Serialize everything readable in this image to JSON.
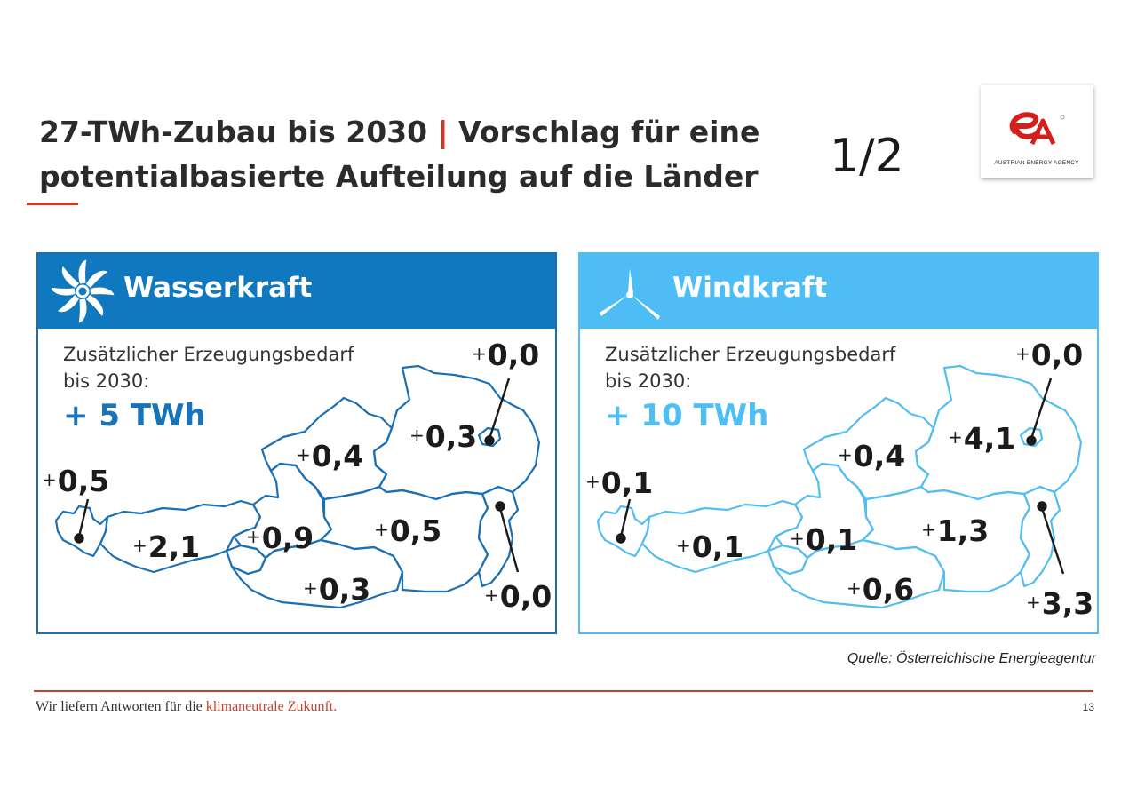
{
  "title": {
    "part1": "27-TWh-Zubau bis 2030 ",
    "separator": "|",
    "part2": " Vorschlag für eine potentialbasierte Aufteilung auf die Länder"
  },
  "page_fraction": "1/2",
  "logo": {
    "text": "AUSTRIAN ENERGY AGENCY",
    "monogram": "eA"
  },
  "panels": [
    {
      "id": "wasserkraft",
      "title": "Wasserkraft",
      "icon": "water-turbine-icon",
      "color": "#1078bf",
      "description_line1": "Zusätzlicher Erzeugungsbedarf",
      "description_line2": "bis 2030:",
      "total": "+ 5 TWh",
      "regions": [
        {
          "plus": "+",
          "value": "0,5"
        },
        {
          "plus": "+",
          "value": "2,1"
        },
        {
          "plus": "+",
          "value": "0,9"
        },
        {
          "plus": "+",
          "value": "0,4"
        },
        {
          "plus": "+",
          "value": "0,3"
        },
        {
          "plus": "+",
          "value": "0,0"
        },
        {
          "plus": "+",
          "value": "0,5"
        },
        {
          "plus": "+",
          "value": "0,3"
        },
        {
          "plus": "+",
          "value": "0,0"
        }
      ]
    },
    {
      "id": "windkraft",
      "title": "Windkraft",
      "icon": "wind-turbine-icon",
      "color": "#4ebcf5",
      "description_line1": "Zusätzlicher Erzeugungsbedarf",
      "description_line2": "bis 2030:",
      "total": "+ 10 TWh",
      "regions": [
        {
          "plus": "+",
          "value": "0,1"
        },
        {
          "plus": "+",
          "value": "0,1"
        },
        {
          "plus": "+",
          "value": "0,1"
        },
        {
          "plus": "+",
          "value": "0,4"
        },
        {
          "plus": "+",
          "value": "4,1"
        },
        {
          "plus": "+",
          "value": "0,0"
        },
        {
          "plus": "+",
          "value": "1,3"
        },
        {
          "plus": "+",
          "value": "0,6"
        },
        {
          "plus": "+",
          "value": "3,3"
        }
      ]
    }
  ],
  "source": "Quelle: Österreichische Energieagentur",
  "footer": {
    "text_prefix": "Wir liefern Antworten für die ",
    "text_accent": "klimaneutrale Zukunft.",
    "page_number": "13"
  }
}
